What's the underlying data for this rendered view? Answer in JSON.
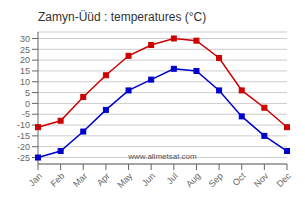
{
  "chart_data": {
    "type": "line",
    "title": "Zamyn-Üüd : temperatures (°C)",
    "categories": [
      "Jan",
      "Feb",
      "Mar",
      "Apr",
      "May",
      "Jun",
      "Jul",
      "Aug",
      "Sep",
      "Oct",
      "Nov",
      "Dec"
    ],
    "series": [
      {
        "color": "#cc0000",
        "marker": "square",
        "values": [
          -11,
          -8,
          3,
          13,
          22,
          27,
          30,
          29,
          21,
          6,
          -2,
          -11
        ]
      },
      {
        "color": "#0000cc",
        "marker": "square",
        "values": [
          -25,
          -22,
          -13,
          -3,
          6,
          11,
          16,
          15,
          6,
          -6,
          -15,
          -22
        ]
      }
    ],
    "ylim": [
      -28,
      33
    ],
    "yticks": [
      -25,
      -20,
      -15,
      -10,
      -5,
      0,
      5,
      10,
      15,
      20,
      25,
      30
    ],
    "grid": true,
    "annotations": [
      "www.allmetsat.com"
    ]
  }
}
